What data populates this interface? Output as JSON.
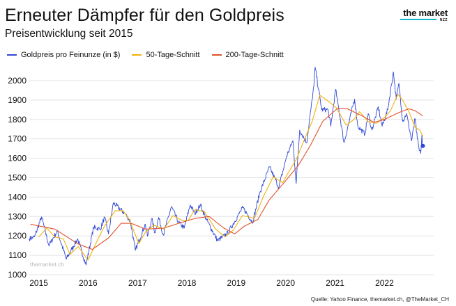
{
  "header": {
    "title": "Erneuter Dämpfer für den Goldpreis",
    "subtitle": "Preisentwicklung seit 2015"
  },
  "brand": {
    "name": "the market",
    "sub": "NZZ",
    "accent": "#12b7c8"
  },
  "watermark": "themarket.ch",
  "source": "Quelle: Yahoo Finance, themarket.ch, @TheMarket_CH",
  "colors": {
    "price": "#2f48d6",
    "ma50": "#f2b10b",
    "ma200": "#e0502a",
    "grid": "#e3e3e3"
  },
  "chart_data": {
    "type": "line",
    "xlabel": "",
    "ylabel": "",
    "ylim": [
      1000,
      2050
    ],
    "xlim": [
      "2014-10-23",
      "2022-12-31"
    ],
    "x_ticks": [
      "2015",
      "2016",
      "2017",
      "2018",
      "2019",
      "2020",
      "2021",
      "2022"
    ],
    "y_ticks": [
      1000,
      1100,
      1200,
      1300,
      1400,
      1500,
      1600,
      1700,
      1800,
      1900,
      2000
    ],
    "grid": "horizontal",
    "legend_position": "top",
    "series": [
      {
        "name": "Goldpreis pro Feinunze (in $)",
        "key": "price",
        "points": [
          [
            "2014-10-23",
            1185
          ],
          [
            "2014-12-01",
            1195
          ],
          [
            "2015-01-22",
            1298
          ],
          [
            "2015-03-17",
            1150
          ],
          [
            "2015-05-18",
            1225
          ],
          [
            "2015-07-24",
            1080
          ],
          [
            "2015-10-15",
            1185
          ],
          [
            "2015-12-17",
            1050
          ],
          [
            "2016-02-11",
            1245
          ],
          [
            "2016-03-31",
            1235
          ],
          [
            "2016-05-02",
            1295
          ],
          [
            "2016-05-31",
            1210
          ],
          [
            "2016-07-06",
            1370
          ],
          [
            "2016-09-30",
            1315
          ],
          [
            "2016-11-09",
            1275
          ],
          [
            "2016-12-15",
            1125
          ],
          [
            "2017-02-27",
            1260
          ],
          [
            "2017-03-15",
            1198
          ],
          [
            "2017-04-17",
            1290
          ],
          [
            "2017-05-09",
            1215
          ],
          [
            "2017-06-06",
            1295
          ],
          [
            "2017-07-10",
            1205
          ],
          [
            "2017-09-08",
            1350
          ],
          [
            "2017-10-31",
            1270
          ],
          [
            "2017-12-12",
            1240
          ],
          [
            "2018-01-25",
            1360
          ],
          [
            "2018-02-28",
            1315
          ],
          [
            "2018-04-11",
            1360
          ],
          [
            "2018-05-21",
            1290
          ],
          [
            "2018-08-16",
            1175
          ],
          [
            "2018-10-31",
            1215
          ],
          [
            "2019-01-31",
            1325
          ],
          [
            "2019-02-20",
            1345
          ],
          [
            "2019-05-02",
            1270
          ],
          [
            "2019-06-25",
            1425
          ],
          [
            "2019-09-04",
            1555
          ],
          [
            "2019-11-12",
            1450
          ],
          [
            "2020-01-08",
            1610
          ],
          [
            "2020-02-24",
            1690
          ],
          [
            "2020-03-19",
            1470
          ],
          [
            "2020-04-14",
            1745
          ],
          [
            "2020-06-05",
            1680
          ],
          [
            "2020-07-28",
            1975
          ],
          [
            "2020-08-06",
            2070
          ],
          [
            "2020-09-24",
            1850
          ],
          [
            "2020-11-09",
            1850
          ],
          [
            "2020-11-30",
            1765
          ],
          [
            "2021-01-05",
            1955
          ],
          [
            "2021-03-08",
            1680
          ],
          [
            "2021-05-25",
            1905
          ],
          [
            "2021-06-18",
            1765
          ],
          [
            "2021-08-09",
            1725
          ],
          [
            "2021-09-03",
            1830
          ],
          [
            "2021-09-30",
            1745
          ],
          [
            "2021-11-16",
            1865
          ],
          [
            "2021-12-15",
            1765
          ],
          [
            "2022-01-25",
            1850
          ],
          [
            "2022-03-08",
            2045
          ],
          [
            "2022-03-29",
            1905
          ],
          [
            "2022-04-18",
            1985
          ],
          [
            "2022-05-16",
            1790
          ],
          [
            "2022-06-13",
            1830
          ],
          [
            "2022-07-21",
            1690
          ],
          [
            "2022-08-15",
            1805
          ],
          [
            "2022-09-01",
            1700
          ],
          [
            "2022-09-16",
            1640
          ],
          [
            "2022-09-26",
            1625
          ],
          [
            "2022-10-05",
            1720
          ],
          [
            "2022-10-07",
            1695
          ],
          [
            "2022-10-12",
            1664
          ]
        ]
      },
      {
        "name": "50-Tage-Schnitt",
        "key": "ma50",
        "points": [
          [
            "2015-01-01",
            1195
          ],
          [
            "2015-03-01",
            1240
          ],
          [
            "2015-05-01",
            1195
          ],
          [
            "2015-07-01",
            1185
          ],
          [
            "2015-08-20",
            1105
          ],
          [
            "2015-10-20",
            1145
          ],
          [
            "2015-12-31",
            1075
          ],
          [
            "2016-03-01",
            1165
          ],
          [
            "2016-05-01",
            1250
          ],
          [
            "2016-07-20",
            1330
          ],
          [
            "2016-09-15",
            1330
          ],
          [
            "2016-11-01",
            1285
          ],
          [
            "2017-01-10",
            1160
          ],
          [
            "2017-03-01",
            1220
          ],
          [
            "2017-05-01",
            1255
          ],
          [
            "2017-07-15",
            1235
          ],
          [
            "2017-09-20",
            1305
          ],
          [
            "2017-11-30",
            1278
          ],
          [
            "2018-01-10",
            1280
          ],
          [
            "2018-03-01",
            1335
          ],
          [
            "2018-05-10",
            1325
          ],
          [
            "2018-08-01",
            1235
          ],
          [
            "2018-10-10",
            1195
          ],
          [
            "2018-12-10",
            1230
          ],
          [
            "2019-02-15",
            1305
          ],
          [
            "2019-05-15",
            1290
          ],
          [
            "2019-07-15",
            1395
          ],
          [
            "2019-10-01",
            1505
          ],
          [
            "2019-12-10",
            1475
          ],
          [
            "2020-01-20",
            1525
          ],
          [
            "2020-03-20",
            1595
          ],
          [
            "2020-05-15",
            1690
          ],
          [
            "2020-07-15",
            1790
          ],
          [
            "2020-09-10",
            1925
          ],
          [
            "2020-11-10",
            1895
          ],
          [
            "2021-01-10",
            1860
          ],
          [
            "2021-03-25",
            1770
          ],
          [
            "2021-05-20",
            1800
          ],
          [
            "2021-07-01",
            1840
          ],
          [
            "2021-09-01",
            1790
          ],
          [
            "2021-11-01",
            1780
          ],
          [
            "2022-01-01",
            1810
          ],
          [
            "2022-02-15",
            1845
          ],
          [
            "2022-04-10",
            1930
          ],
          [
            "2022-05-15",
            1900
          ],
          [
            "2022-07-01",
            1840
          ],
          [
            "2022-08-15",
            1760
          ],
          [
            "2022-09-20",
            1745
          ],
          [
            "2022-10-12",
            1712
          ]
        ]
      },
      {
        "name": "200-Tage-Schnitt",
        "key": "ma200",
        "points": [
          [
            "2014-11-01",
            1260
          ],
          [
            "2015-05-01",
            1235
          ],
          [
            "2015-10-15",
            1160
          ],
          [
            "2016-02-01",
            1130
          ],
          [
            "2016-06-01",
            1190
          ],
          [
            "2016-09-01",
            1265
          ],
          [
            "2016-11-15",
            1265
          ],
          [
            "2017-03-01",
            1235
          ],
          [
            "2017-07-15",
            1240
          ],
          [
            "2017-11-01",
            1265
          ],
          [
            "2018-03-01",
            1290
          ],
          [
            "2018-06-15",
            1300
          ],
          [
            "2018-10-01",
            1240
          ],
          [
            "2018-12-20",
            1210
          ],
          [
            "2019-03-01",
            1250
          ],
          [
            "2019-06-10",
            1285
          ],
          [
            "2019-09-01",
            1385
          ],
          [
            "2019-12-15",
            1470
          ],
          [
            "2020-04-01",
            1560
          ],
          [
            "2020-07-01",
            1665
          ],
          [
            "2020-10-01",
            1790
          ],
          [
            "2021-01-15",
            1855
          ],
          [
            "2021-04-01",
            1855
          ],
          [
            "2021-07-15",
            1820
          ],
          [
            "2021-10-15",
            1785
          ],
          [
            "2022-01-01",
            1800
          ],
          [
            "2022-04-15",
            1835
          ],
          [
            "2022-07-01",
            1855
          ],
          [
            "2022-08-15",
            1845
          ],
          [
            "2022-10-12",
            1818
          ]
        ]
      }
    ]
  }
}
